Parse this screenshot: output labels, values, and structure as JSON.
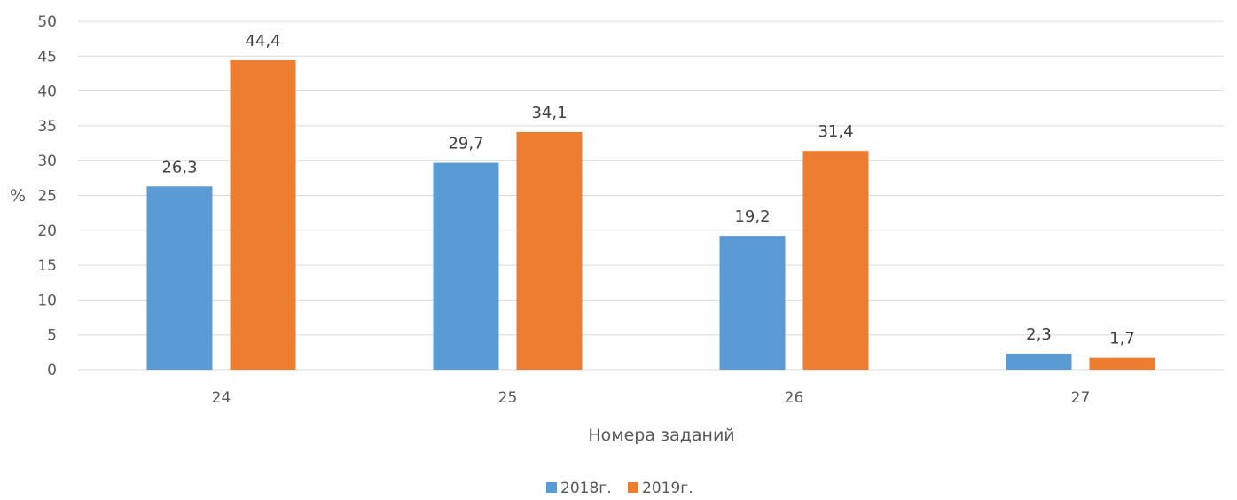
{
  "chart_data": {
    "type": "bar",
    "categories": [
      "24",
      "25",
      "26",
      "27"
    ],
    "series": [
      {
        "name": "2018г.",
        "values": [
          26.3,
          29.7,
          19.2,
          2.3
        ],
        "labels": [
          "26,3",
          "29,7",
          "19,2",
          "2,3"
        ],
        "color": "#5B9BD5"
      },
      {
        "name": "2019г.",
        "values": [
          44.4,
          34.1,
          31.4,
          1.7
        ],
        "labels": [
          "44,4",
          "34,1",
          "31,4",
          "1,7"
        ],
        "color": "#ED7D31"
      }
    ],
    "xlabel": "Номера заданий",
    "ylabel": "%",
    "ylim": [
      0,
      50
    ],
    "yticks": [
      0,
      5,
      10,
      15,
      20,
      25,
      30,
      35,
      40,
      45,
      50
    ],
    "grid": true,
    "legend": "bottom"
  }
}
